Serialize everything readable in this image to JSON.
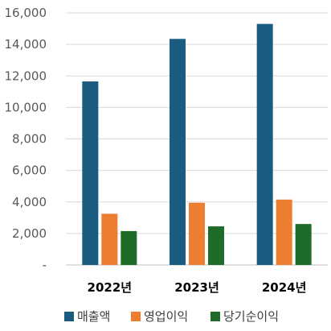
{
  "chart_data": {
    "type": "bar",
    "categories": [
      "2022년",
      "2023년",
      "2024년"
    ],
    "series": [
      {
        "name": "매출액",
        "values": [
          11650,
          14350,
          15300
        ],
        "color": "#1a5c80"
      },
      {
        "name": "영업이익",
        "values": [
          3250,
          3950,
          4150
        ],
        "color": "#ed7d31"
      },
      {
        "name": "당기순이익",
        "values": [
          2150,
          2450,
          2600
        ],
        "color": "#1e6b2a"
      }
    ],
    "ylim": [
      0,
      16000
    ],
    "yticks": [
      0,
      2000,
      4000,
      6000,
      8000,
      10000,
      12000,
      14000,
      16000
    ],
    "ytick_labels": [
      "-",
      "2,000",
      "4,000",
      "6,000",
      "8,000",
      "10,000",
      "12,000",
      "14,000",
      "16,000"
    ],
    "grid": true,
    "legend_position": "bottom"
  }
}
